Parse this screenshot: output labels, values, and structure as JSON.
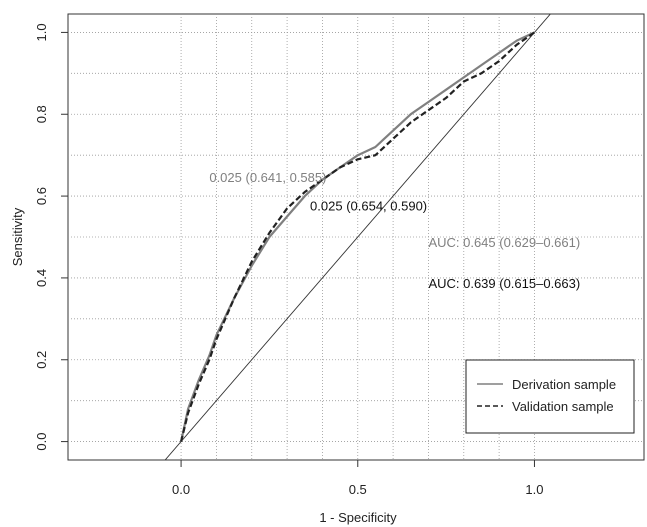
{
  "chart_data": {
    "type": "line",
    "title": "",
    "xlabel": "1 - Specificity",
    "ylabel": "Sensitivity",
    "xlim": [
      -0.32,
      1.31
    ],
    "ylim": [
      -0.045,
      1.045
    ],
    "x_ticks": [
      "0.0",
      "0.5",
      "1.0"
    ],
    "x_tick_values": [
      0,
      0.5,
      1
    ],
    "y_ticks": [
      "0.0",
      "0.2",
      "0.4",
      "0.6",
      "0.8",
      "1.0"
    ],
    "y_tick_values": [
      0,
      0.2,
      0.4,
      0.6,
      0.8,
      1
    ],
    "x_grid": [
      0,
      0.1,
      0.2,
      0.3,
      0.4,
      0.5,
      0.6,
      0.7,
      0.8,
      0.9,
      1.0
    ],
    "y_grid": [
      0,
      0.1,
      0.2,
      0.3,
      0.4,
      0.5,
      0.6,
      0.7,
      0.8,
      0.9,
      1.0
    ],
    "grid": true,
    "legend_position": "bottom-right",
    "series": [
      {
        "name": "Derivation sample",
        "style": "solid",
        "color": "#808080",
        "x": [
          0,
          0.02,
          0.05,
          0.08,
          0.1,
          0.15,
          0.2,
          0.25,
          0.3,
          0.35,
          0.4,
          0.45,
          0.5,
          0.55,
          0.6,
          0.65,
          0.7,
          0.75,
          0.8,
          0.85,
          0.9,
          0.95,
          1.0
        ],
        "y": [
          0,
          0.08,
          0.15,
          0.21,
          0.26,
          0.35,
          0.43,
          0.5,
          0.55,
          0.6,
          0.64,
          0.67,
          0.7,
          0.72,
          0.76,
          0.8,
          0.83,
          0.86,
          0.89,
          0.92,
          0.95,
          0.98,
          1.0
        ]
      },
      {
        "name": "Validation sample",
        "style": "dashed",
        "color": "#222222",
        "x": [
          0,
          0.02,
          0.05,
          0.08,
          0.1,
          0.15,
          0.2,
          0.25,
          0.3,
          0.35,
          0.4,
          0.45,
          0.5,
          0.55,
          0.6,
          0.65,
          0.7,
          0.75,
          0.8,
          0.85,
          0.9,
          0.95,
          1.0
        ],
        "y": [
          0,
          0.07,
          0.14,
          0.2,
          0.25,
          0.35,
          0.44,
          0.51,
          0.57,
          0.61,
          0.64,
          0.67,
          0.69,
          0.7,
          0.74,
          0.78,
          0.81,
          0.84,
          0.88,
          0.9,
          0.93,
          0.97,
          1.0
        ]
      },
      {
        "name": "",
        "style": "reference",
        "color": "#333333",
        "x": [
          -0.05,
          1.05
        ],
        "y": [
          -0.05,
          1.05
        ]
      }
    ],
    "annotations": [
      {
        "text": "0.025 (0.641, 0.585)",
        "x": 0.08,
        "y": 0.635,
        "color": "#808080"
      },
      {
        "text": "0.025 (0.654, 0.590)",
        "x": 0.365,
        "y": 0.565,
        "color": "#111111"
      },
      {
        "text": "AUC: 0.645 (0.629–0.661)",
        "x": 0.7,
        "y": 0.475,
        "color": "#808080"
      },
      {
        "text": "AUC: 0.639 (0.615–0.663)",
        "x": 0.7,
        "y": 0.375,
        "color": "#111111"
      }
    ],
    "legend": [
      {
        "label": "Derivation sample",
        "style": "solid"
      },
      {
        "label": "Validation sample",
        "style": "dashed"
      }
    ]
  }
}
